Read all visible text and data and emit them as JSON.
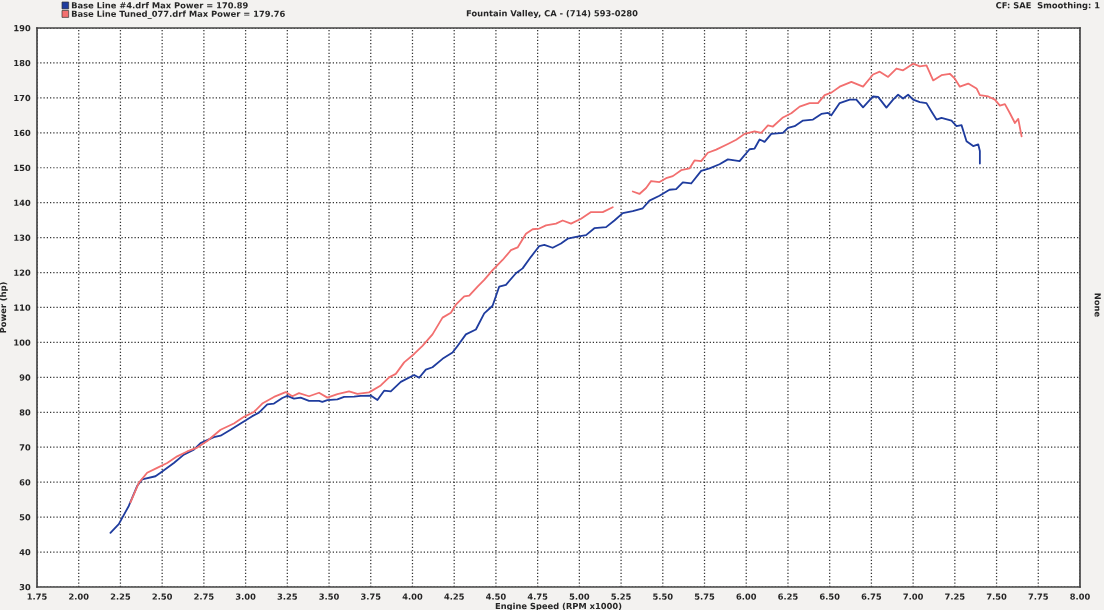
{
  "chart_data": {
    "type": "line",
    "subtitle": "Fountain Valley, CA - (714) 593-0280",
    "xlabel": "Engine Speed (RPM x1000)",
    "ylabel": "Power (hp)",
    "y2label": "None",
    "annotations": [
      "CF: SAE  Smoothing: 1"
    ],
    "xlim": [
      1.75,
      8.0
    ],
    "xticks": [
      {
        "value": 1.75,
        "label": "1.75"
      },
      {
        "value": 2.0,
        "label": "2.00"
      },
      {
        "value": 2.25,
        "label": "2.25"
      },
      {
        "value": 2.5,
        "label": "2.50"
      },
      {
        "value": 2.75,
        "label": "2.75"
      },
      {
        "value": 3.0,
        "label": "3.00"
      },
      {
        "value": 3.25,
        "label": "3.25"
      },
      {
        "value": 3.5,
        "label": "3.50"
      },
      {
        "value": 3.75,
        "label": "3.75"
      },
      {
        "value": 4.0,
        "label": "4.00"
      },
      {
        "value": 4.25,
        "label": "4.25"
      },
      {
        "value": 4.5,
        "label": "4.50"
      },
      {
        "value": 4.75,
        "label": "4.75"
      },
      {
        "value": 5.0,
        "label": "5.00"
      },
      {
        "value": 5.25,
        "label": "5.25"
      },
      {
        "value": 5.5,
        "label": "5.50"
      },
      {
        "value": 5.75,
        "label": "5.75"
      },
      {
        "value": 6.0,
        "label": "6.00"
      },
      {
        "value": 6.25,
        "label": "6.25"
      },
      {
        "value": 6.5,
        "label": "6.50"
      },
      {
        "value": 6.75,
        "label": "6.75"
      },
      {
        "value": 7.0,
        "label": "7.00"
      },
      {
        "value": 7.25,
        "label": "7.25"
      },
      {
        "value": 7.5,
        "label": "7.50"
      },
      {
        "value": 7.75,
        "label": "7.75"
      },
      {
        "value": 8.0,
        "label": "8.00"
      }
    ],
    "ylim": [
      30,
      190
    ],
    "yticks": [
      30,
      40,
      50,
      60,
      70,
      80,
      90,
      100,
      110,
      120,
      130,
      140,
      150,
      160,
      170,
      180,
      190
    ],
    "grid": true,
    "legend": "top left",
    "marker": "none",
    "line_style": "solid",
    "series": [
      {
        "name": "Base Line #4.drf Max Power = 170.89",
        "color": "#1f3c9e",
        "x": [
          2.19,
          2.24,
          2.3,
          2.35,
          2.38,
          2.46,
          2.49,
          2.57,
          2.63,
          2.69,
          2.73,
          2.81,
          2.85,
          2.91,
          2.97,
          3.04,
          3.08,
          3.13,
          3.17,
          3.22,
          3.25,
          3.29,
          3.33,
          3.38,
          3.44,
          3.46,
          3.49,
          3.55,
          3.59,
          3.65,
          3.69,
          3.75,
          3.79,
          3.83,
          3.87,
          3.93,
          4.01,
          4.04,
          4.08,
          4.12,
          4.18,
          4.24,
          4.27,
          4.32,
          4.38,
          4.43,
          4.48,
          4.52,
          4.56,
          4.62,
          4.66,
          4.71,
          4.76,
          4.79,
          4.84,
          4.89,
          4.93,
          4.98,
          5.04,
          5.09,
          5.16,
          5.21,
          5.26,
          5.32,
          5.38,
          5.42,
          5.48,
          5.54,
          5.58,
          5.62,
          5.67,
          5.73,
          5.78,
          5.84,
          5.89,
          5.96,
          6.02,
          6.05,
          6.08,
          6.11,
          6.15,
          6.22,
          6.25,
          6.29,
          6.34,
          6.4,
          6.45,
          6.49,
          6.51,
          6.56,
          6.62,
          6.66,
          6.7,
          6.76,
          6.79,
          6.84,
          6.88,
          6.91,
          6.94,
          6.97,
          7.0,
          7.04,
          7.08,
          7.11,
          7.14,
          7.17,
          7.23,
          7.26,
          7.29,
          7.32,
          7.36,
          7.39,
          7.4,
          7.4
        ],
        "values": [
          45.5,
          48.0,
          53.2,
          58.9,
          60.8,
          61.7,
          62.7,
          65.5,
          67.9,
          69.3,
          71.2,
          72.9,
          73.3,
          75.0,
          76.8,
          78.9,
          79.9,
          82.3,
          82.5,
          84.1,
          84.7,
          83.9,
          84.2,
          83.3,
          83.3,
          83.0,
          83.5,
          83.7,
          84.4,
          84.5,
          84.7,
          84.8,
          83.5,
          86.2,
          86.0,
          88.7,
          90.7,
          89.9,
          92.2,
          92.9,
          95.3,
          97.1,
          99.0,
          102.3,
          103.7,
          108.3,
          110.5,
          116.0,
          116.5,
          119.8,
          121.2,
          124.5,
          127.6,
          127.9,
          127.1,
          128.3,
          129.7,
          130.2,
          130.7,
          132.7,
          133.0,
          134.9,
          137.0,
          137.6,
          138.4,
          140.6,
          142.0,
          143.7,
          143.9,
          145.8,
          145.5,
          149.1,
          149.8,
          151.0,
          152.4,
          151.9,
          155.3,
          155.5,
          158.1,
          157.4,
          159.7,
          160.0,
          161.4,
          161.9,
          163.5,
          163.8,
          165.4,
          165.7,
          165.0,
          168.5,
          169.5,
          169.5,
          167.3,
          170.4,
          170.3,
          167.2,
          169.5,
          170.9,
          169.8,
          170.9,
          169.5,
          168.8,
          168.5,
          166.1,
          163.8,
          164.3,
          163.5,
          161.9,
          162.2,
          157.6,
          156.2,
          156.7,
          154.8,
          151.2
        ]
      },
      {
        "name": "Base Line Tuned_077.drf Max Power = 179.76",
        "color": "#f26f6f",
        "x": [
          2.31,
          2.36,
          2.41,
          2.47,
          2.53,
          2.59,
          2.65,
          2.71,
          2.77,
          2.85,
          2.93,
          2.99,
          3.05,
          3.1,
          3.17,
          3.24,
          3.28,
          3.32,
          3.38,
          3.44,
          3.49,
          3.55,
          3.62,
          3.67,
          3.74,
          3.81,
          3.86,
          3.9,
          3.95,
          4.01,
          4.06,
          4.12,
          4.18,
          4.23,
          4.26,
          4.31,
          4.34,
          4.39,
          4.43,
          4.48,
          4.54,
          4.59,
          4.63,
          4.68,
          4.72,
          4.76,
          4.8,
          4.86,
          4.9,
          4.95,
          5.01,
          5.07,
          5.14,
          5.2,
          5.26,
          5.32,
          5.36,
          5.4,
          5.43,
          5.48,
          5.52,
          5.56,
          5.61,
          5.66,
          5.69,
          5.73,
          5.77,
          5.82,
          5.89,
          5.94,
          5.99,
          6.05,
          6.09,
          6.13,
          6.16,
          6.22,
          6.27,
          6.32,
          6.38,
          6.43,
          6.47,
          6.51,
          6.56,
          6.63,
          6.7,
          6.76,
          6.8,
          6.85,
          6.9,
          6.94,
          7.0,
          7.04,
          7.08,
          7.12,
          7.17,
          7.22,
          7.25,
          7.28,
          7.33,
          7.38,
          7.4,
          7.45,
          7.49,
          7.52,
          7.55,
          7.58,
          7.61,
          7.63,
          7.65
        ],
        "values": [
          54.2,
          59.8,
          62.7,
          64.1,
          65.5,
          67.4,
          68.8,
          69.9,
          71.8,
          75.0,
          76.8,
          78.7,
          80.1,
          82.5,
          84.4,
          85.8,
          84.6,
          85.5,
          84.6,
          85.6,
          84.2,
          85.2,
          86.0,
          85.3,
          85.7,
          87.7,
          90.0,
          91.0,
          94.3,
          96.7,
          99.0,
          102.3,
          107.1,
          108.5,
          110.8,
          113.2,
          113.4,
          116.0,
          117.9,
          120.7,
          123.6,
          126.4,
          127.2,
          131.1,
          132.4,
          132.6,
          133.5,
          134.0,
          134.9,
          134.0,
          135.4,
          137.3,
          137.3,
          138.7,
          null,
          143.2,
          142.5,
          144.2,
          146.2,
          145.9,
          147.0,
          147.6,
          149.3,
          149.8,
          152.1,
          151.9,
          154.3,
          155.2,
          156.8,
          158.0,
          159.7,
          160.4,
          160.0,
          162.1,
          161.8,
          164.4,
          165.6,
          167.5,
          168.5,
          168.5,
          170.8,
          171.5,
          173.2,
          174.6,
          173.2,
          176.7,
          177.5,
          176.0,
          178.4,
          177.9,
          179.8,
          179.0,
          179.3,
          175.0,
          176.5,
          176.9,
          175.5,
          173.2,
          174.1,
          172.7,
          170.8,
          170.4,
          169.5,
          167.8,
          168.2,
          165.6,
          162.8,
          164.0,
          159.0
        ]
      }
    ]
  }
}
